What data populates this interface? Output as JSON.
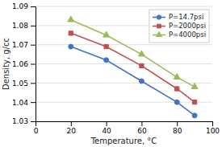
{
  "chart_data": {
    "type": "line",
    "x": [
      20,
      40,
      60,
      80,
      90
    ],
    "series": [
      {
        "name": "P=14.7psi",
        "color": "#4472C4",
        "marker": "circle",
        "values": [
          1.069,
          1.062,
          1.051,
          1.04,
          1.033
        ]
      },
      {
        "name": "P=2000psi",
        "color": "#C0504D",
        "marker": "square",
        "values": [
          1.076,
          1.069,
          1.059,
          1.047,
          1.04
        ]
      },
      {
        "name": "P=4000psi",
        "color": "#9BBB59",
        "marker": "triangle",
        "values": [
          1.083,
          1.075,
          1.065,
          1.053,
          1.048
        ]
      }
    ],
    "xlabel": "Temperature, °C",
    "ylabel": "Density, g/cc",
    "xlim": [
      0,
      100
    ],
    "ylim": [
      1.03,
      1.09
    ],
    "xticks": [
      0,
      20,
      40,
      60,
      80,
      100
    ],
    "yticks": [
      1.03,
      1.04,
      1.05,
      1.06,
      1.07,
      1.08,
      1.09
    ],
    "grid": "y",
    "legend": "upper right"
  }
}
